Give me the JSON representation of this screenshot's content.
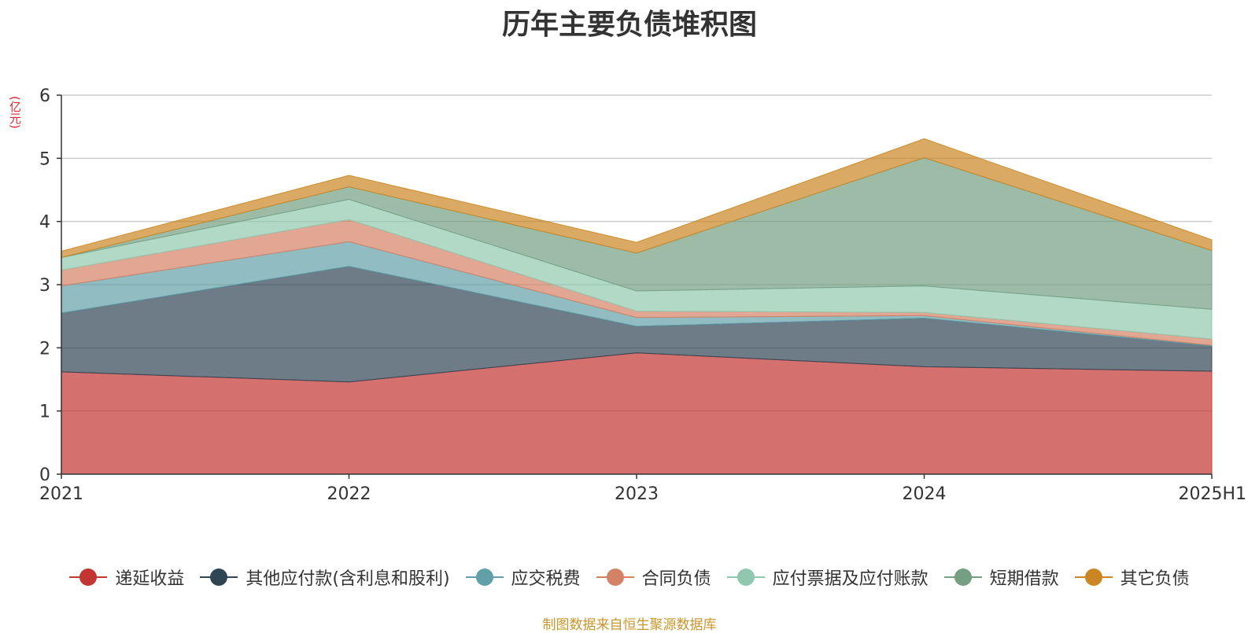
{
  "chart_data": {
    "type": "area",
    "stacked": true,
    "title": "历年主要负债堆积图",
    "unit_label": "(亿元)",
    "categories": [
      "2021",
      "2022",
      "2023",
      "2024",
      "2025H1"
    ],
    "ylim": [
      0,
      6
    ],
    "yticks": [
      0,
      1,
      2,
      3,
      4,
      5,
      6
    ],
    "grid": true,
    "legend_position": "bottom",
    "series": [
      {
        "name": "递延收益",
        "color": "#c23531",
        "values": [
          1.62,
          1.46,
          1.92,
          1.7,
          1.63
        ]
      },
      {
        "name": "其他应付款(含利息和股利)",
        "color": "#2f4554",
        "values": [
          0.93,
          1.83,
          0.42,
          0.77,
          0.4
        ]
      },
      {
        "name": "应交税费",
        "color": "#61a0a8",
        "values": [
          0.43,
          0.39,
          0.14,
          0.04,
          0.01
        ]
      },
      {
        "name": "合同负债",
        "color": "#d48265",
        "values": [
          0.25,
          0.35,
          0.1,
          0.05,
          0.1
        ]
      },
      {
        "name": "应付票据及应付账款",
        "color": "#91c7ae",
        "values": [
          0.2,
          0.32,
          0.32,
          0.42,
          0.47
        ]
      },
      {
        "name": "短期借款",
        "color": "#749f83",
        "values": [
          0.0,
          0.2,
          0.6,
          2.03,
          0.93
        ]
      },
      {
        "name": "其它负债",
        "color": "#ca8622",
        "values": [
          0.1,
          0.18,
          0.17,
          0.3,
          0.17
        ]
      }
    ]
  },
  "source_text": "制图数据来自恒生聚源数据库"
}
